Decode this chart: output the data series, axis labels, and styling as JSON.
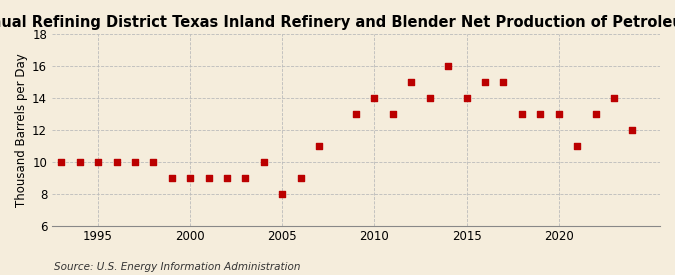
{
  "title": "Annual Refining District Texas Inland Refinery and Blender Net Production of Petroleum Coke",
  "ylabel": "Thousand Barrels per Day",
  "source": "Source: U.S. Energy Information Administration",
  "years": [
    1993,
    1994,
    1995,
    1996,
    1997,
    1998,
    1999,
    2000,
    2001,
    2002,
    2003,
    2004,
    2005,
    2006,
    2007,
    2009,
    2010,
    2011,
    2012,
    2013,
    2014,
    2015,
    2016,
    2017,
    2018,
    2019,
    2020,
    2021,
    2022,
    2023,
    2024
  ],
  "values": [
    10,
    10,
    10,
    10,
    10,
    10,
    9,
    9,
    9,
    9,
    9,
    10,
    8,
    9,
    11,
    13,
    14,
    13,
    15,
    14,
    16,
    14,
    15,
    15,
    13,
    13,
    13,
    11,
    13,
    14,
    12
  ],
  "marker_color": "#bb0000",
  "marker_size": 18,
  "bg_color": "#f5eddc",
  "grid_color": "#bbbbbb",
  "title_fontsize": 10.5,
  "label_fontsize": 8.5,
  "tick_fontsize": 8.5,
  "source_fontsize": 7.5,
  "ylim": [
    6,
    18
  ],
  "yticks": [
    6,
    8,
    10,
    12,
    14,
    16,
    18
  ],
  "xlim": [
    1992.5,
    2025.5
  ],
  "xticks": [
    1995,
    2000,
    2005,
    2010,
    2015,
    2020
  ]
}
